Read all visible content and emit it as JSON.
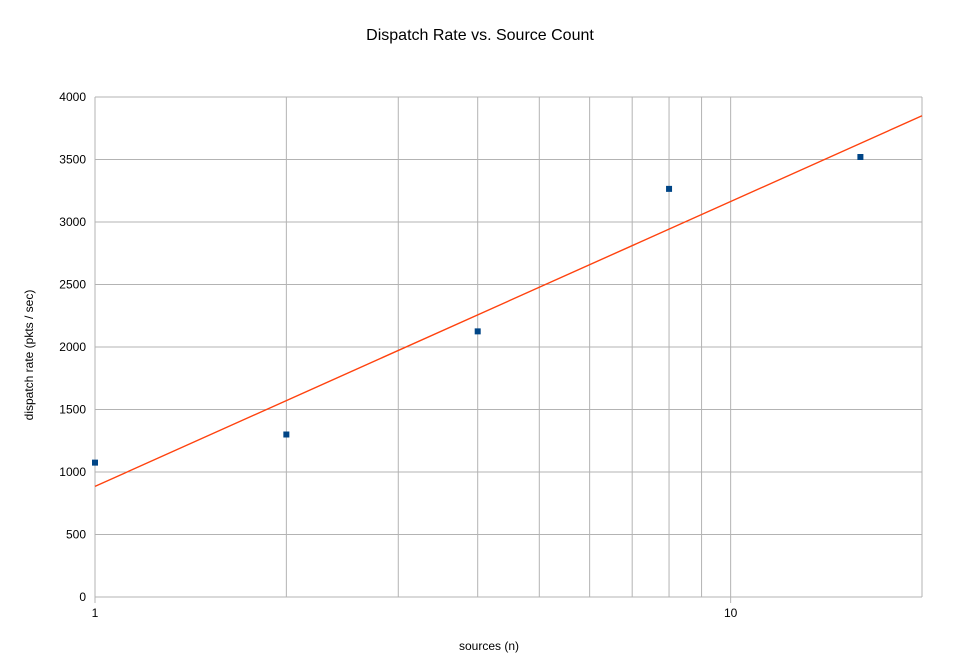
{
  "chart_data": {
    "type": "scatter",
    "title": "Dispatch Rate vs. Source Count",
    "xlabel": "sources (n)",
    "ylabel": "dispatch rate (pkts / sec)",
    "x_scale": "log",
    "xlim": [
      1,
      20
    ],
    "ylim": [
      0,
      4000
    ],
    "y_ticks": [
      0,
      500,
      1000,
      1500,
      2000,
      2500,
      3000,
      3500,
      4000
    ],
    "x_tick_labels": [
      1,
      10
    ],
    "x_minor_grid": [
      2,
      3,
      4,
      5,
      6,
      7,
      8,
      9
    ],
    "grid": true,
    "legend": "none",
    "series": [
      {
        "x": [
          1,
          2,
          4,
          8,
          16
        ],
        "y": [
          1075,
          1300,
          2125,
          3265,
          3520
        ],
        "color": "#004586",
        "marker": "square"
      }
    ],
    "trendline": {
      "kind": "logarithmic",
      "x": [
        1,
        20
      ],
      "y": [
        885,
        3850
      ],
      "color": "#ff420e"
    }
  }
}
